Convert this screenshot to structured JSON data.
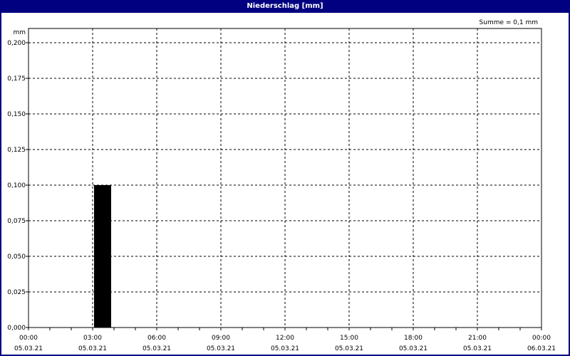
{
  "window": {
    "title": "Niederschlag [mm]"
  },
  "chart_data": {
    "type": "bar",
    "title": "Niederschlag [mm]",
    "ylabel": "mm",
    "annotation": "Summe = 0,1 mm",
    "ylim": [
      0,
      0.21
    ],
    "yticks": [
      "0,000",
      "0,025",
      "0,050",
      "0,075",
      "0,100",
      "0,125",
      "0,150",
      "0,175",
      "0,200"
    ],
    "xticks": [
      {
        "time": "00:00",
        "date": "05.03.21"
      },
      {
        "time": "03:00",
        "date": "05.03.21"
      },
      {
        "time": "06:00",
        "date": "05.03.21"
      },
      {
        "time": "09:00",
        "date": "05.03.21"
      },
      {
        "time": "12:00",
        "date": "05.03.21"
      },
      {
        "time": "15:00",
        "date": "05.03.21"
      },
      {
        "time": "18:00",
        "date": "05.03.21"
      },
      {
        "time": "21:00",
        "date": "05.03.21"
      },
      {
        "time": "00:00",
        "date": "06.03.21"
      }
    ],
    "xrange_hours": [
      0,
      24
    ],
    "bars": [
      {
        "start": "05.03.21 03:00",
        "end": "05.03.21 04:00",
        "value": 0.1
      }
    ],
    "bar_color": "#000000",
    "grid": true
  }
}
